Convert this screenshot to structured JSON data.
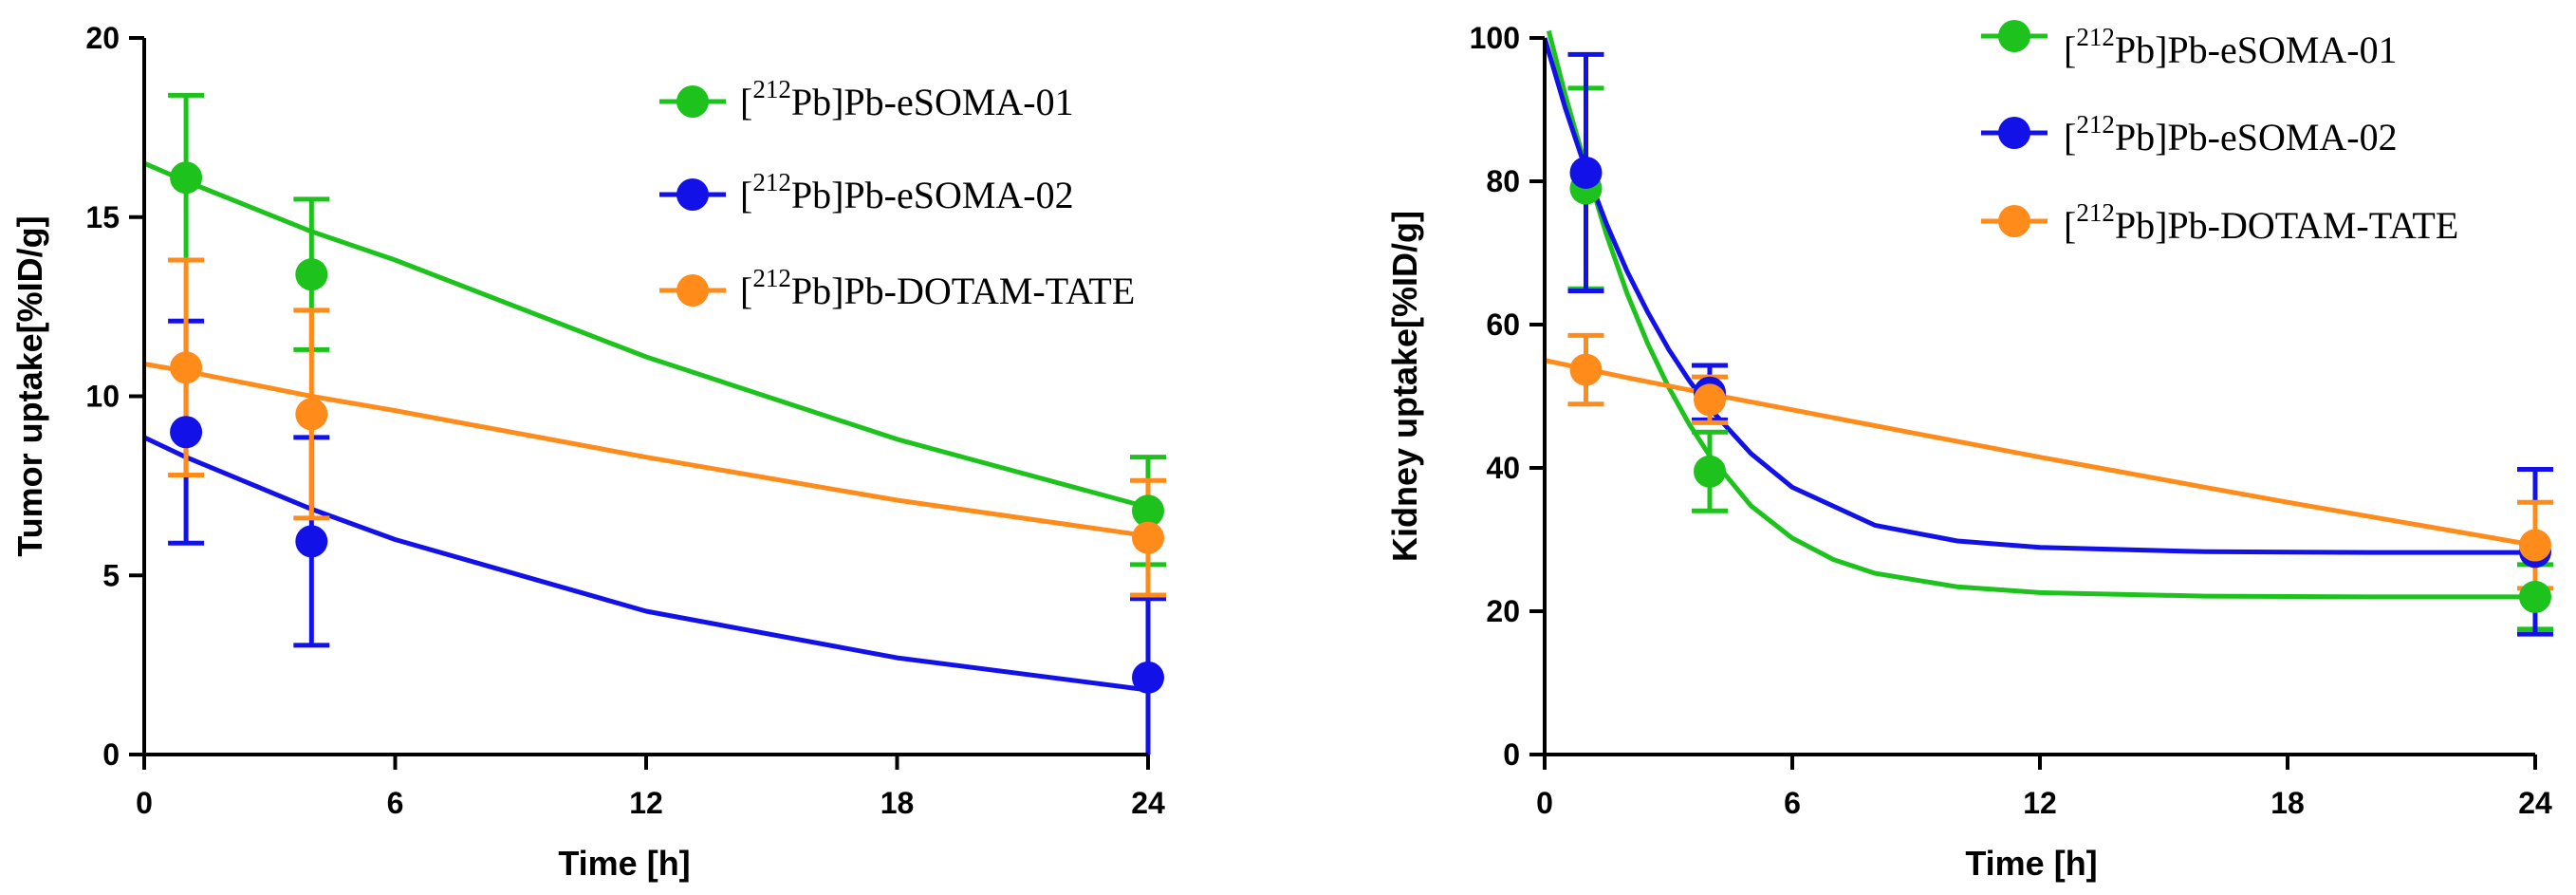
{
  "chart_data": [
    {
      "type": "scatter",
      "ylabel": "Tumor uptake[%ID/g]",
      "xlabel": "Time [h]",
      "xlim": [
        0,
        24
      ],
      "ylim": [
        0,
        20
      ],
      "xticks": [
        0,
        6,
        12,
        18,
        24
      ],
      "yticks": [
        0,
        5,
        10,
        15,
        20
      ],
      "xtick_labels": [
        "0",
        "6",
        "12",
        "18",
        "24"
      ],
      "ytick_labels": [
        "0",
        "5",
        "10",
        "15",
        "20"
      ],
      "grid": false,
      "legend_position": "top-right",
      "series": [
        {
          "key": "esoma01",
          "legend_sup": "212",
          "legend_rest": "Pb]Pb-eSOMA-01",
          "color": "#1dc21d",
          "x": [
            1,
            4,
            24
          ],
          "y": [
            16.1,
            13.4,
            6.8
          ],
          "err": [
            2.3,
            2.1,
            1.5
          ],
          "fit": [
            [
              0,
              16.5
            ],
            [
              1,
              16.0
            ],
            [
              4,
              14.6
            ],
            [
              6,
              13.8
            ],
            [
              12,
              11.1
            ],
            [
              18,
              8.8
            ],
            [
              24,
              6.9
            ]
          ]
        },
        {
          "key": "esoma02",
          "legend_sup": "212",
          "legend_rest": "Pb]Pb-eSOMA-02",
          "color": "#1212e8",
          "x": [
            1,
            4,
            24
          ],
          "y": [
            9.0,
            5.95,
            2.15
          ],
          "err": [
            3.1,
            2.9,
            2.2
          ],
          "fit": [
            [
              0,
              8.85
            ],
            [
              1,
              8.3
            ],
            [
              4,
              6.85
            ],
            [
              6,
              6.0
            ],
            [
              12,
              4.0
            ],
            [
              18,
              2.7
            ],
            [
              24,
              1.8
            ]
          ]
        },
        {
          "key": "dotam",
          "legend_sup": "212",
          "legend_rest": "Pb]Pb-DOTAM-TATE",
          "color": "#ff8c1a",
          "x": [
            1,
            4,
            24
          ],
          "y": [
            10.8,
            9.5,
            6.05
          ],
          "err": [
            3.0,
            2.9,
            1.6
          ],
          "fit": [
            [
              0,
              10.9
            ],
            [
              1,
              10.7
            ],
            [
              4,
              10.0
            ],
            [
              6,
              9.6
            ],
            [
              12,
              8.3
            ],
            [
              18,
              7.1
            ],
            [
              24,
              6.1
            ]
          ]
        }
      ]
    },
    {
      "type": "scatter",
      "ylabel": "Kidney uptake[%ID/g]",
      "xlabel": "Time [h]",
      "xlim": [
        0,
        24
      ],
      "ylim": [
        0,
        100
      ],
      "xticks": [
        0,
        6,
        12,
        18,
        24
      ],
      "yticks": [
        0,
        20,
        40,
        60,
        80,
        100
      ],
      "xtick_labels": [
        "0",
        "6",
        "12",
        "18",
        "24"
      ],
      "ytick_labels": [
        "0",
        "20",
        "40",
        "60",
        "80",
        "100"
      ],
      "grid": false,
      "legend_position": "top-right",
      "series": [
        {
          "key": "esoma01",
          "legend_sup": "212",
          "legend_rest": "Pb]Pb-eSOMA-01",
          "color": "#1dc21d",
          "x": [
            1,
            4,
            24
          ],
          "y": [
            79,
            39.5,
            22
          ],
          "err": [
            14,
            5.5,
            4.5
          ],
          "fit": [
            [
              0.1,
              101
            ],
            [
              0.5,
              92
            ],
            [
              1,
              82
            ],
            [
              1.5,
              72.5
            ],
            [
              2,
              64.3
            ],
            [
              2.5,
              57.3
            ],
            [
              3,
              51.3
            ],
            [
              3.5,
              46.1
            ],
            [
              4,
              41.7
            ],
            [
              5,
              34.7
            ],
            [
              6,
              30.2
            ],
            [
              7,
              27.2
            ],
            [
              8,
              25.3
            ],
            [
              10,
              23.4
            ],
            [
              12,
              22.6
            ],
            [
              16,
              22.1
            ],
            [
              20,
              22.0
            ],
            [
              24,
              22.0
            ]
          ]
        },
        {
          "key": "esoma02",
          "legend_sup": "212",
          "legend_rest": "Pb]Pb-eSOMA-02",
          "color": "#1212e8",
          "x": [
            1,
            4,
            24
          ],
          "y": [
            81.2,
            50.5,
            28.3
          ],
          "err": [
            16.5,
            3.8,
            11.5
          ],
          "fit": [
            [
              0,
              100
            ],
            [
              0.5,
              90.2
            ],
            [
              1,
              81.6
            ],
            [
              1.5,
              74.0
            ],
            [
              2,
              67.4
            ],
            [
              2.5,
              61.7
            ],
            [
              3,
              56.6
            ],
            [
              3.5,
              52.2
            ],
            [
              4,
              48.3
            ],
            [
              5,
              42.0
            ],
            [
              6,
              37.3
            ],
            [
              8,
              32.0
            ],
            [
              10,
              29.8
            ],
            [
              12,
              28.9
            ],
            [
              16,
              28.3
            ],
            [
              20,
              28.2
            ],
            [
              24,
              28.2
            ]
          ]
        },
        {
          "key": "dotam",
          "legend_sup": "212",
          "legend_rest": "Pb]Pb-DOTAM-TATE",
          "color": "#ff8c1a",
          "x": [
            1,
            4,
            24
          ],
          "y": [
            53.7,
            49.5,
            29.2
          ],
          "err": [
            4.8,
            3.2,
            6.0
          ],
          "fit": [
            [
              0,
              55.0
            ],
            [
              1,
              53.8
            ],
            [
              2,
              52.6
            ],
            [
              4,
              50.3
            ],
            [
              6,
              48.1
            ],
            [
              8,
              45.9
            ],
            [
              10,
              43.7
            ],
            [
              12,
              41.5
            ],
            [
              14,
              39.4
            ],
            [
              16,
              37.3
            ],
            [
              18,
              35.2
            ],
            [
              20,
              33.2
            ],
            [
              22,
              31.2
            ],
            [
              24,
              29.2
            ]
          ]
        }
      ]
    }
  ]
}
